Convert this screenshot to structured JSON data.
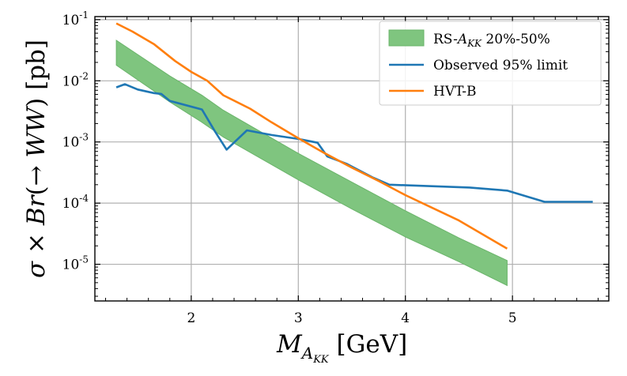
{
  "chart_data": {
    "type": "line",
    "title": "",
    "xlabel": "M_{A_{KK}} [GeV]",
    "ylabel": "σ × Br(→ WW) [pb]",
    "xlim": [
      1.1,
      5.9
    ],
    "ylim_log10": [
      -5.6,
      -0.95
    ],
    "yscale": "log",
    "grid": true,
    "x_ticks": [
      2,
      3,
      4,
      5
    ],
    "y_ticks": [
      {
        "base": "10",
        "exp": "-5",
        "value": 1e-05
      },
      {
        "base": "10",
        "exp": "-4",
        "value": 0.0001
      },
      {
        "base": "10",
        "exp": "-3",
        "value": 0.001
      },
      {
        "base": "10",
        "exp": "-2",
        "value": 0.01
      },
      {
        "base": "10",
        "exp": "-1",
        "value": 0.1
      }
    ],
    "legend_position": "top-right",
    "band": {
      "name": "RS-A_{KK} 20%-50%",
      "color": "#7fc57f",
      "edge_color": "#6ab46a",
      "x": [
        1.3,
        1.8,
        2.1,
        2.3,
        3.0,
        3.5,
        4.0,
        4.5,
        4.95
      ],
      "upper": [
        0.046,
        0.012,
        0.0058,
        0.0033,
        0.00065,
        0.00022,
        7.5e-05,
        2.7e-05,
        1.15e-05
      ],
      "lower": [
        0.018,
        0.0045,
        0.0021,
        0.0012,
        0.00024,
        8e-05,
        2.8e-05,
        1.1e-05,
        4.5e-06
      ]
    },
    "series": [
      {
        "name": "Observed 95% limit",
        "color": "#1f77b4",
        "x": [
          1.3,
          1.38,
          1.5,
          1.65,
          1.72,
          1.8,
          2.1,
          2.22,
          2.33,
          2.52,
          2.75,
          3.0,
          3.18,
          3.27,
          3.45,
          3.7,
          3.85,
          4.6,
          4.95,
          5.3,
          5.75
        ],
        "y": [
          0.0078,
          0.0088,
          0.0072,
          0.0063,
          0.0061,
          0.0047,
          0.0034,
          0.0015,
          0.00075,
          0.00155,
          0.0013,
          0.00112,
          0.00097,
          0.00058,
          0.00044,
          0.00026,
          0.0002,
          0.00018,
          0.00016,
          0.000105,
          0.000105
        ]
      },
      {
        "name": "HVT-B",
        "color": "#ff7f0e",
        "x": [
          1.3,
          1.45,
          1.65,
          1.85,
          2.0,
          2.15,
          2.3,
          2.55,
          2.75,
          3.0,
          3.25,
          3.5,
          3.75,
          4.0,
          4.5,
          4.95
        ],
        "y": [
          0.087,
          0.064,
          0.04,
          0.021,
          0.014,
          0.01,
          0.0058,
          0.0035,
          0.0021,
          0.00115,
          0.00065,
          0.00038,
          0.00023,
          0.000135,
          5.2e-05,
          1.8e-05
        ]
      }
    ]
  }
}
